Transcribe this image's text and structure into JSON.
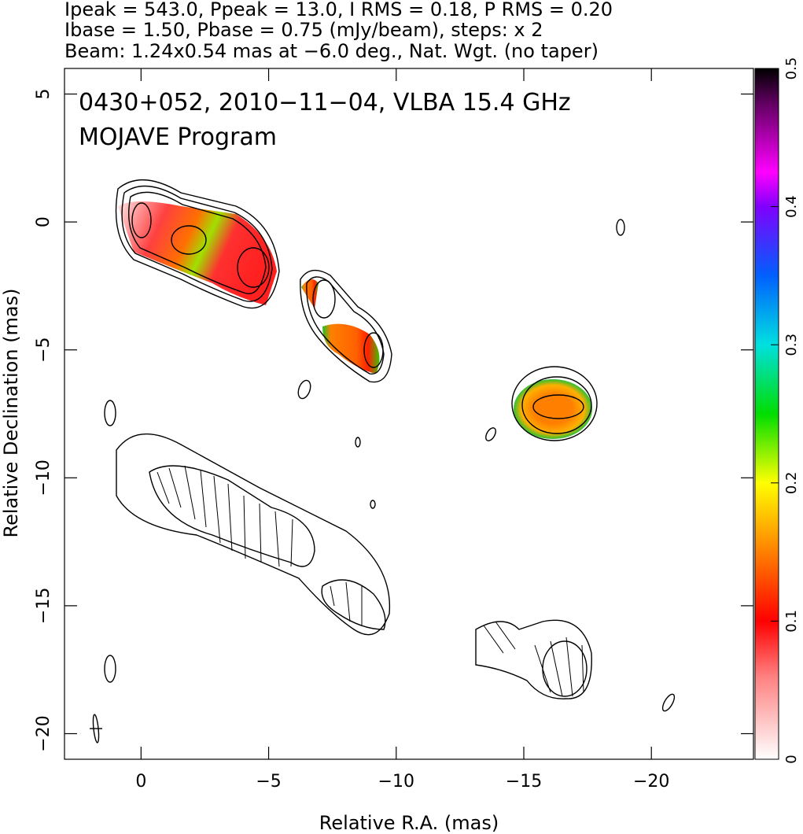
{
  "chart_data": {
    "type": "map",
    "header": [
      "Ipeak = 543.0, Ppeak = 13.0, I RMS = 0.18, P RMS = 0.20",
      "Ibase = 1.50, Pbase = 0.75 (mJy/beam), steps: x 2",
      "Beam: 1.24x0.54 mas at −6.0 deg., Nat. Wgt. (no taper)"
    ],
    "annotations": [
      "0430+052, 2010−11−04, VLBA 15.4 GHz",
      "MOJAVE Program"
    ],
    "xlabel": "Relative R.A. (mas)",
    "ylabel": "Relative Declination (mas)",
    "xlim": [
      3,
      -24
    ],
    "xticks": [
      0,
      {
        "value": -5,
        "label": "−5"
      },
      {
        "value": -10,
        "label": "−10"
      },
      {
        "value": -15,
        "label": "−15"
      },
      {
        "value": -20,
        "label": "−20"
      }
    ],
    "ylim": [
      -21,
      6
    ],
    "yticks": [
      5,
      0,
      {
        "value": -5,
        "label": "−5"
      },
      {
        "value": -10,
        "label": "−10"
      },
      {
        "value": -15,
        "label": "−15"
      },
      {
        "value": -20,
        "label": "−20"
      }
    ],
    "colorbar": {
      "lim": [
        0,
        0.5
      ],
      "ticks": [
        0,
        0.1,
        0.2,
        0.3,
        0.4,
        0.5
      ]
    }
  }
}
